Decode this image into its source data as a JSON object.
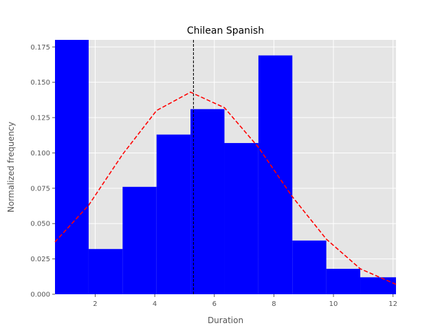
{
  "chart_data": {
    "type": "bar",
    "title": "Chilean Spanish",
    "xlabel": "Duration",
    "ylabel": "Normalized frequency",
    "xlim": [
      0.65,
      12.1
    ],
    "ylim": [
      0,
      0.18
    ],
    "x_ticks": [
      2,
      4,
      6,
      8,
      10,
      12
    ],
    "y_ticks": [
      0.0,
      0.025,
      0.05,
      0.075,
      0.1,
      0.125,
      0.15,
      0.175
    ],
    "y_tick_labels": [
      "0.000",
      "0.025",
      "0.050",
      "0.075",
      "0.100",
      "0.125",
      "0.150",
      "0.175"
    ],
    "grid": true,
    "histogram": {
      "color": "#0000ff",
      "bins": [
        {
          "x0": 0.65,
          "x1": 1.78,
          "value": 0.18
        },
        {
          "x0": 1.78,
          "x1": 2.92,
          "value": 0.032
        },
        {
          "x0": 2.92,
          "x1": 4.06,
          "value": 0.076
        },
        {
          "x0": 4.06,
          "x1": 5.2,
          "value": 0.113
        },
        {
          "x0": 5.2,
          "x1": 6.34,
          "value": 0.131
        },
        {
          "x0": 6.34,
          "x1": 7.48,
          "value": 0.107
        },
        {
          "x0": 7.48,
          "x1": 8.62,
          "value": 0.169
        },
        {
          "x0": 8.62,
          "x1": 9.76,
          "value": 0.038
        },
        {
          "x0": 9.76,
          "x1": 10.9,
          "value": 0.018
        },
        {
          "x0": 10.9,
          "x1": 12.1,
          "value": 0.012
        }
      ]
    },
    "fit_curve": {
      "color": "#ff0000",
      "style": "dashed",
      "x": [
        0.65,
        1.78,
        2.92,
        4.06,
        5.2,
        6.34,
        7.48,
        8.62,
        9.76,
        10.9,
        12.1
      ],
      "y": [
        0.037,
        0.063,
        0.099,
        0.13,
        0.143,
        0.132,
        0.104,
        0.069,
        0.039,
        0.018,
        0.007
      ]
    },
    "mean_line": {
      "x": 5.3,
      "color": "#000000",
      "style": "dashed"
    }
  }
}
